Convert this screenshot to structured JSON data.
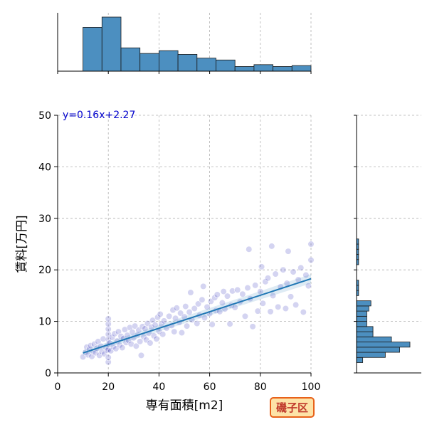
{
  "chart_data": {
    "type": "scatter",
    "xlabel": "専有面積[m2]",
    "ylabel": "賃料[万円]",
    "xlim": [
      0,
      100
    ],
    "ylim": [
      0,
      50
    ],
    "x_ticks": [
      "0",
      "20",
      "40",
      "60",
      "80",
      "100"
    ],
    "y_ticks": [
      "0",
      "10",
      "20",
      "30",
      "40",
      "50"
    ],
    "grid": true,
    "regression": {
      "equation_label": "y=0.16x+2.27",
      "slope": 0.16,
      "intercept": 2.27,
      "x_range": [
        10,
        100
      ]
    },
    "series": [
      {
        "points": [
          [
            10,
            3.1
          ],
          [
            11,
            4.0
          ],
          [
            11.5,
            5.0
          ],
          [
            12,
            3.5
          ],
          [
            12.5,
            4.6
          ],
          [
            13,
            5.3
          ],
          [
            13.5,
            3.2
          ],
          [
            14,
            4.2
          ],
          [
            14.5,
            5.6
          ],
          [
            15,
            3.9
          ],
          [
            15.5,
            4.8
          ],
          [
            16,
            6.1
          ],
          [
            16.5,
            3.4
          ],
          [
            17,
            5.2
          ],
          [
            17.5,
            4.1
          ],
          [
            18,
            6.6
          ],
          [
            18.5,
            3.7
          ],
          [
            19,
            5.0
          ],
          [
            19.5,
            4.4
          ],
          [
            20,
            2.1
          ],
          [
            20,
            3.0
          ],
          [
            20,
            4.5
          ],
          [
            20,
            5.5
          ],
          [
            20,
            6.5
          ],
          [
            20,
            7.5
          ],
          [
            20,
            8.5
          ],
          [
            20,
            9.5
          ],
          [
            20,
            10.5
          ],
          [
            20.5,
            5.8
          ],
          [
            21,
            4.3
          ],
          [
            21.5,
            6.9
          ],
          [
            22,
            5.1
          ],
          [
            22.5,
            7.6
          ],
          [
            23,
            4.7
          ],
          [
            23.5,
            6.2
          ],
          [
            24,
            8.0
          ],
          [
            24.5,
            5.4
          ],
          [
            25,
            7.1
          ],
          [
            25.5,
            4.9
          ],
          [
            26,
            6.7
          ],
          [
            26.5,
            8.4
          ],
          [
            27,
            5.9
          ],
          [
            27.5,
            7.3
          ],
          [
            28,
            6.3
          ],
          [
            28.5,
            8.8
          ],
          [
            29,
            5.6
          ],
          [
            29.5,
            7.9
          ],
          [
            30,
            6.8
          ],
          [
            30.5,
            9.1
          ],
          [
            31,
            5.2
          ],
          [
            31.5,
            7.4
          ],
          [
            32,
            8.3
          ],
          [
            32.5,
            6.1
          ],
          [
            33,
            3.4
          ],
          [
            33.5,
            9.0
          ],
          [
            34,
            7.0
          ],
          [
            34.5,
            8.6
          ],
          [
            35,
            6.4
          ],
          [
            35.5,
            9.6
          ],
          [
            36,
            7.7
          ],
          [
            36.5,
            5.8
          ],
          [
            37,
            8.9
          ],
          [
            37.5,
            10.2
          ],
          [
            38,
            7.2
          ],
          [
            38.5,
            9.3
          ],
          [
            39,
            6.6
          ],
          [
            39.5,
            10.8
          ],
          [
            40,
            8.1
          ],
          [
            40.5,
            11.4
          ],
          [
            41,
            9.5
          ],
          [
            41.5,
            7.5
          ],
          [
            42,
            10.1
          ],
          [
            43,
            8.7
          ],
          [
            44,
            11.0
          ],
          [
            45,
            9.2
          ],
          [
            45.5,
            12.2
          ],
          [
            46,
            8.0
          ],
          [
            46.5,
            10.6
          ],
          [
            47,
            12.6
          ],
          [
            48,
            9.8
          ],
          [
            48.5,
            11.6
          ],
          [
            49,
            7.8
          ],
          [
            50,
            10.9
          ],
          [
            50.5,
            12.9
          ],
          [
            51,
            9.1
          ],
          [
            52,
            11.8
          ],
          [
            52.5,
            15.6
          ],
          [
            53,
            10.3
          ],
          [
            54,
            12.5
          ],
          [
            55,
            9.6
          ],
          [
            55.5,
            13.4
          ],
          [
            56,
            11.2
          ],
          [
            57,
            14.2
          ],
          [
            57.5,
            16.8
          ],
          [
            58,
            10.7
          ],
          [
            59,
            12.8
          ],
          [
            60,
            11.5
          ],
          [
            60.5,
            13.9
          ],
          [
            61,
            9.4
          ],
          [
            62,
            14.6
          ],
          [
            62.5,
            12.1
          ],
          [
            63,
            15.2
          ],
          [
            64,
            11.9
          ],
          [
            65,
            13.6
          ],
          [
            65.5,
            15.8
          ],
          [
            66,
            12.4
          ],
          [
            67,
            14.9
          ],
          [
            68,
            9.5
          ],
          [
            68.5,
            13.1
          ],
          [
            69,
            15.9
          ],
          [
            70,
            12.7
          ],
          [
            71,
            16.1
          ],
          [
            72,
            13.8
          ],
          [
            73,
            15.3
          ],
          [
            74,
            11.0
          ],
          [
            75,
            16.5
          ],
          [
            75.5,
            24.0
          ],
          [
            76,
            14.4
          ],
          [
            77,
            9.0
          ],
          [
            78,
            17.0
          ],
          [
            79,
            12.0
          ],
          [
            80,
            15.8
          ],
          [
            80.5,
            20.6
          ],
          [
            81,
            13.5
          ],
          [
            82,
            17.7
          ],
          [
            83,
            18.4
          ],
          [
            84,
            11.9
          ],
          [
            84.5,
            24.6
          ],
          [
            85,
            15.0
          ],
          [
            86,
            19.2
          ],
          [
            87,
            12.8
          ],
          [
            88,
            16.7
          ],
          [
            89,
            20.0
          ],
          [
            90,
            12.5
          ],
          [
            90.5,
            17.4
          ],
          [
            91,
            23.6
          ],
          [
            92,
            14.8
          ],
          [
            93,
            19.6
          ],
          [
            94,
            13.2
          ],
          [
            95,
            18.1
          ],
          [
            96,
            20.4
          ],
          [
            97,
            11.8
          ],
          [
            98,
            19.0
          ],
          [
            99,
            16.9
          ],
          [
            100,
            21.9
          ],
          [
            100,
            25.0
          ]
        ]
      }
    ],
    "x_marginal": {
      "bins": [
        10,
        17.5,
        25,
        32.5,
        40,
        47.5,
        55,
        62.5,
        70,
        77.5,
        85,
        92.5,
        100
      ],
      "counts": [
        47,
        58,
        25,
        19,
        22,
        18,
        14,
        12,
        5,
        7,
        5,
        6
      ]
    },
    "y_marginal": {
      "bins": [
        2,
        3,
        4,
        5,
        6,
        7,
        8,
        9,
        10,
        11,
        12,
        13,
        14,
        15,
        16,
        17,
        18,
        19,
        20,
        21,
        22,
        23,
        24,
        25,
        26
      ],
      "counts": [
        3,
        14,
        21,
        26,
        17,
        8,
        8,
        5,
        5,
        5,
        6,
        7,
        0,
        1,
        1,
        1,
        0,
        0,
        0,
        1,
        1,
        1,
        1,
        1
      ]
    }
  },
  "badge": {
    "label": "磯子区",
    "border_color": "#e8621a",
    "fill_color": "#fde3a7",
    "text_color": "#c0392b"
  },
  "colors": {
    "scatter": "#3b3bbf",
    "regression_line": "#1f77b4",
    "histogram_fill": "#4c8fc0",
    "equation_text": "#0000cc",
    "grid": "#b0b0b0"
  }
}
